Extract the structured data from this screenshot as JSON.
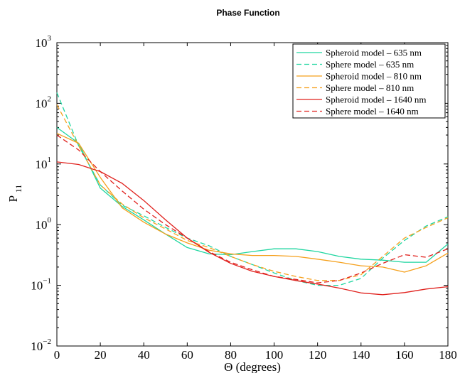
{
  "chart_data": {
    "type": "line",
    "title": "Phase Function",
    "xlabel": "Θ (degrees)",
    "ylabel_main": "P",
    "ylabel_sub": "11",
    "xlim": [
      0,
      180
    ],
    "ylim": [
      0.01,
      1000
    ],
    "yscale": "log",
    "x_ticks": [
      0,
      20,
      40,
      60,
      80,
      100,
      120,
      140,
      160,
      180
    ],
    "y_ticks": [
      {
        "value": 0.01,
        "base": "10",
        "exp": "−2"
      },
      {
        "value": 0.1,
        "base": "10",
        "exp": "−1"
      },
      {
        "value": 1,
        "base": "10",
        "exp": "0"
      },
      {
        "value": 10,
        "base": "10",
        "exp": "1"
      },
      {
        "value": 100,
        "base": "10",
        "exp": "2"
      },
      {
        "value": 1000,
        "base": "10",
        "exp": "3"
      }
    ],
    "grid": false,
    "legend_position": "top-right",
    "series": [
      {
        "name": "Spheroid model – 635 nm",
        "color": "#1fd6a0",
        "dash": "solid",
        "x": [
          0,
          10,
          20,
          30,
          40,
          50,
          60,
          70,
          80,
          90,
          100,
          110,
          120,
          130,
          140,
          150,
          160,
          170,
          180
        ],
        "y": [
          40,
          22,
          4,
          2,
          1.2,
          0.7,
          0.42,
          0.33,
          0.32,
          0.36,
          0.4,
          0.4,
          0.36,
          0.3,
          0.27,
          0.26,
          0.24,
          0.24,
          0.48
        ]
      },
      {
        "name": "Sphere model – 635 nm",
        "color": "#1fd6a0",
        "dash": "dashed",
        "x": [
          0,
          10,
          20,
          30,
          40,
          50,
          60,
          70,
          80,
          90,
          100,
          110,
          120,
          130,
          140,
          150,
          160,
          170,
          180
        ],
        "y": [
          150,
          20,
          4.5,
          2.1,
          1.4,
          0.9,
          0.6,
          0.45,
          0.3,
          0.22,
          0.16,
          0.12,
          0.1,
          0.1,
          0.13,
          0.28,
          0.55,
          0.95,
          1.35
        ]
      },
      {
        "name": "Spheroid model – 810 nm",
        "color": "#f5a01c",
        "dash": "solid",
        "x": [
          0,
          10,
          20,
          30,
          40,
          50,
          60,
          70,
          80,
          90,
          100,
          110,
          120,
          130,
          140,
          150,
          160,
          170,
          180
        ],
        "y": [
          32,
          22,
          6,
          1.9,
          1.1,
          0.7,
          0.5,
          0.38,
          0.33,
          0.31,
          0.31,
          0.3,
          0.27,
          0.24,
          0.21,
          0.2,
          0.165,
          0.21,
          0.34
        ]
      },
      {
        "name": "Sphere model – 810 nm",
        "color": "#f5a01c",
        "dash": "dashed",
        "x": [
          0,
          10,
          20,
          30,
          40,
          50,
          60,
          70,
          80,
          90,
          100,
          110,
          120,
          130,
          140,
          150,
          160,
          170,
          180
        ],
        "y": [
          95,
          20,
          4.5,
          2.2,
          1.3,
          0.85,
          0.55,
          0.42,
          0.3,
          0.22,
          0.17,
          0.14,
          0.12,
          0.12,
          0.15,
          0.3,
          0.6,
          0.9,
          1.3
        ]
      },
      {
        "name": "Spheroid model – 1640 nm",
        "color": "#e0201c",
        "dash": "solid",
        "x": [
          0,
          10,
          20,
          30,
          40,
          50,
          60,
          70,
          80,
          90,
          100,
          110,
          120,
          130,
          140,
          150,
          160,
          170,
          180
        ],
        "y": [
          10.8,
          9.8,
          7.5,
          4.8,
          2.5,
          1.2,
          0.6,
          0.35,
          0.23,
          0.17,
          0.14,
          0.12,
          0.105,
          0.09,
          0.075,
          0.07,
          0.076,
          0.087,
          0.095
        ]
      },
      {
        "name": "Sphere model – 1640 nm",
        "color": "#e0201c",
        "dash": "dashed",
        "x": [
          0,
          10,
          20,
          30,
          40,
          50,
          60,
          70,
          80,
          90,
          100,
          110,
          120,
          130,
          140,
          150,
          160,
          170,
          180
        ],
        "y": [
          30,
          17,
          7.5,
          3.6,
          1.8,
          1.0,
          0.6,
          0.36,
          0.24,
          0.18,
          0.14,
          0.125,
          0.11,
          0.12,
          0.16,
          0.23,
          0.32,
          0.29,
          0.4
        ]
      }
    ]
  }
}
